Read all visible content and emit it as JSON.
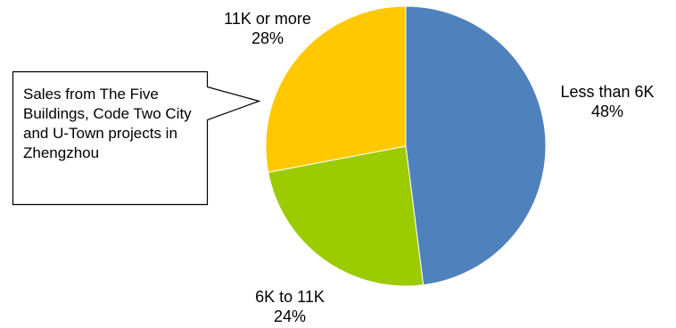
{
  "chart_data": {
    "type": "pie",
    "slices": [
      {
        "label": "Less than 6K",
        "value": 48,
        "value_text": "48%",
        "color": "#4F81BD"
      },
      {
        "label": "6K to 11K",
        "value": 24,
        "value_text": "24%",
        "color": "#9BCB00"
      },
      {
        "label": "11K or more",
        "value": 28,
        "value_text": "28%",
        "color": "#FFC800"
      }
    ],
    "start": "12 o'clock, clockwise",
    "legend": "none",
    "annotation": "Sales from The Five Buildings, Code Two City and U-Town projects  in Zhengzhou"
  }
}
